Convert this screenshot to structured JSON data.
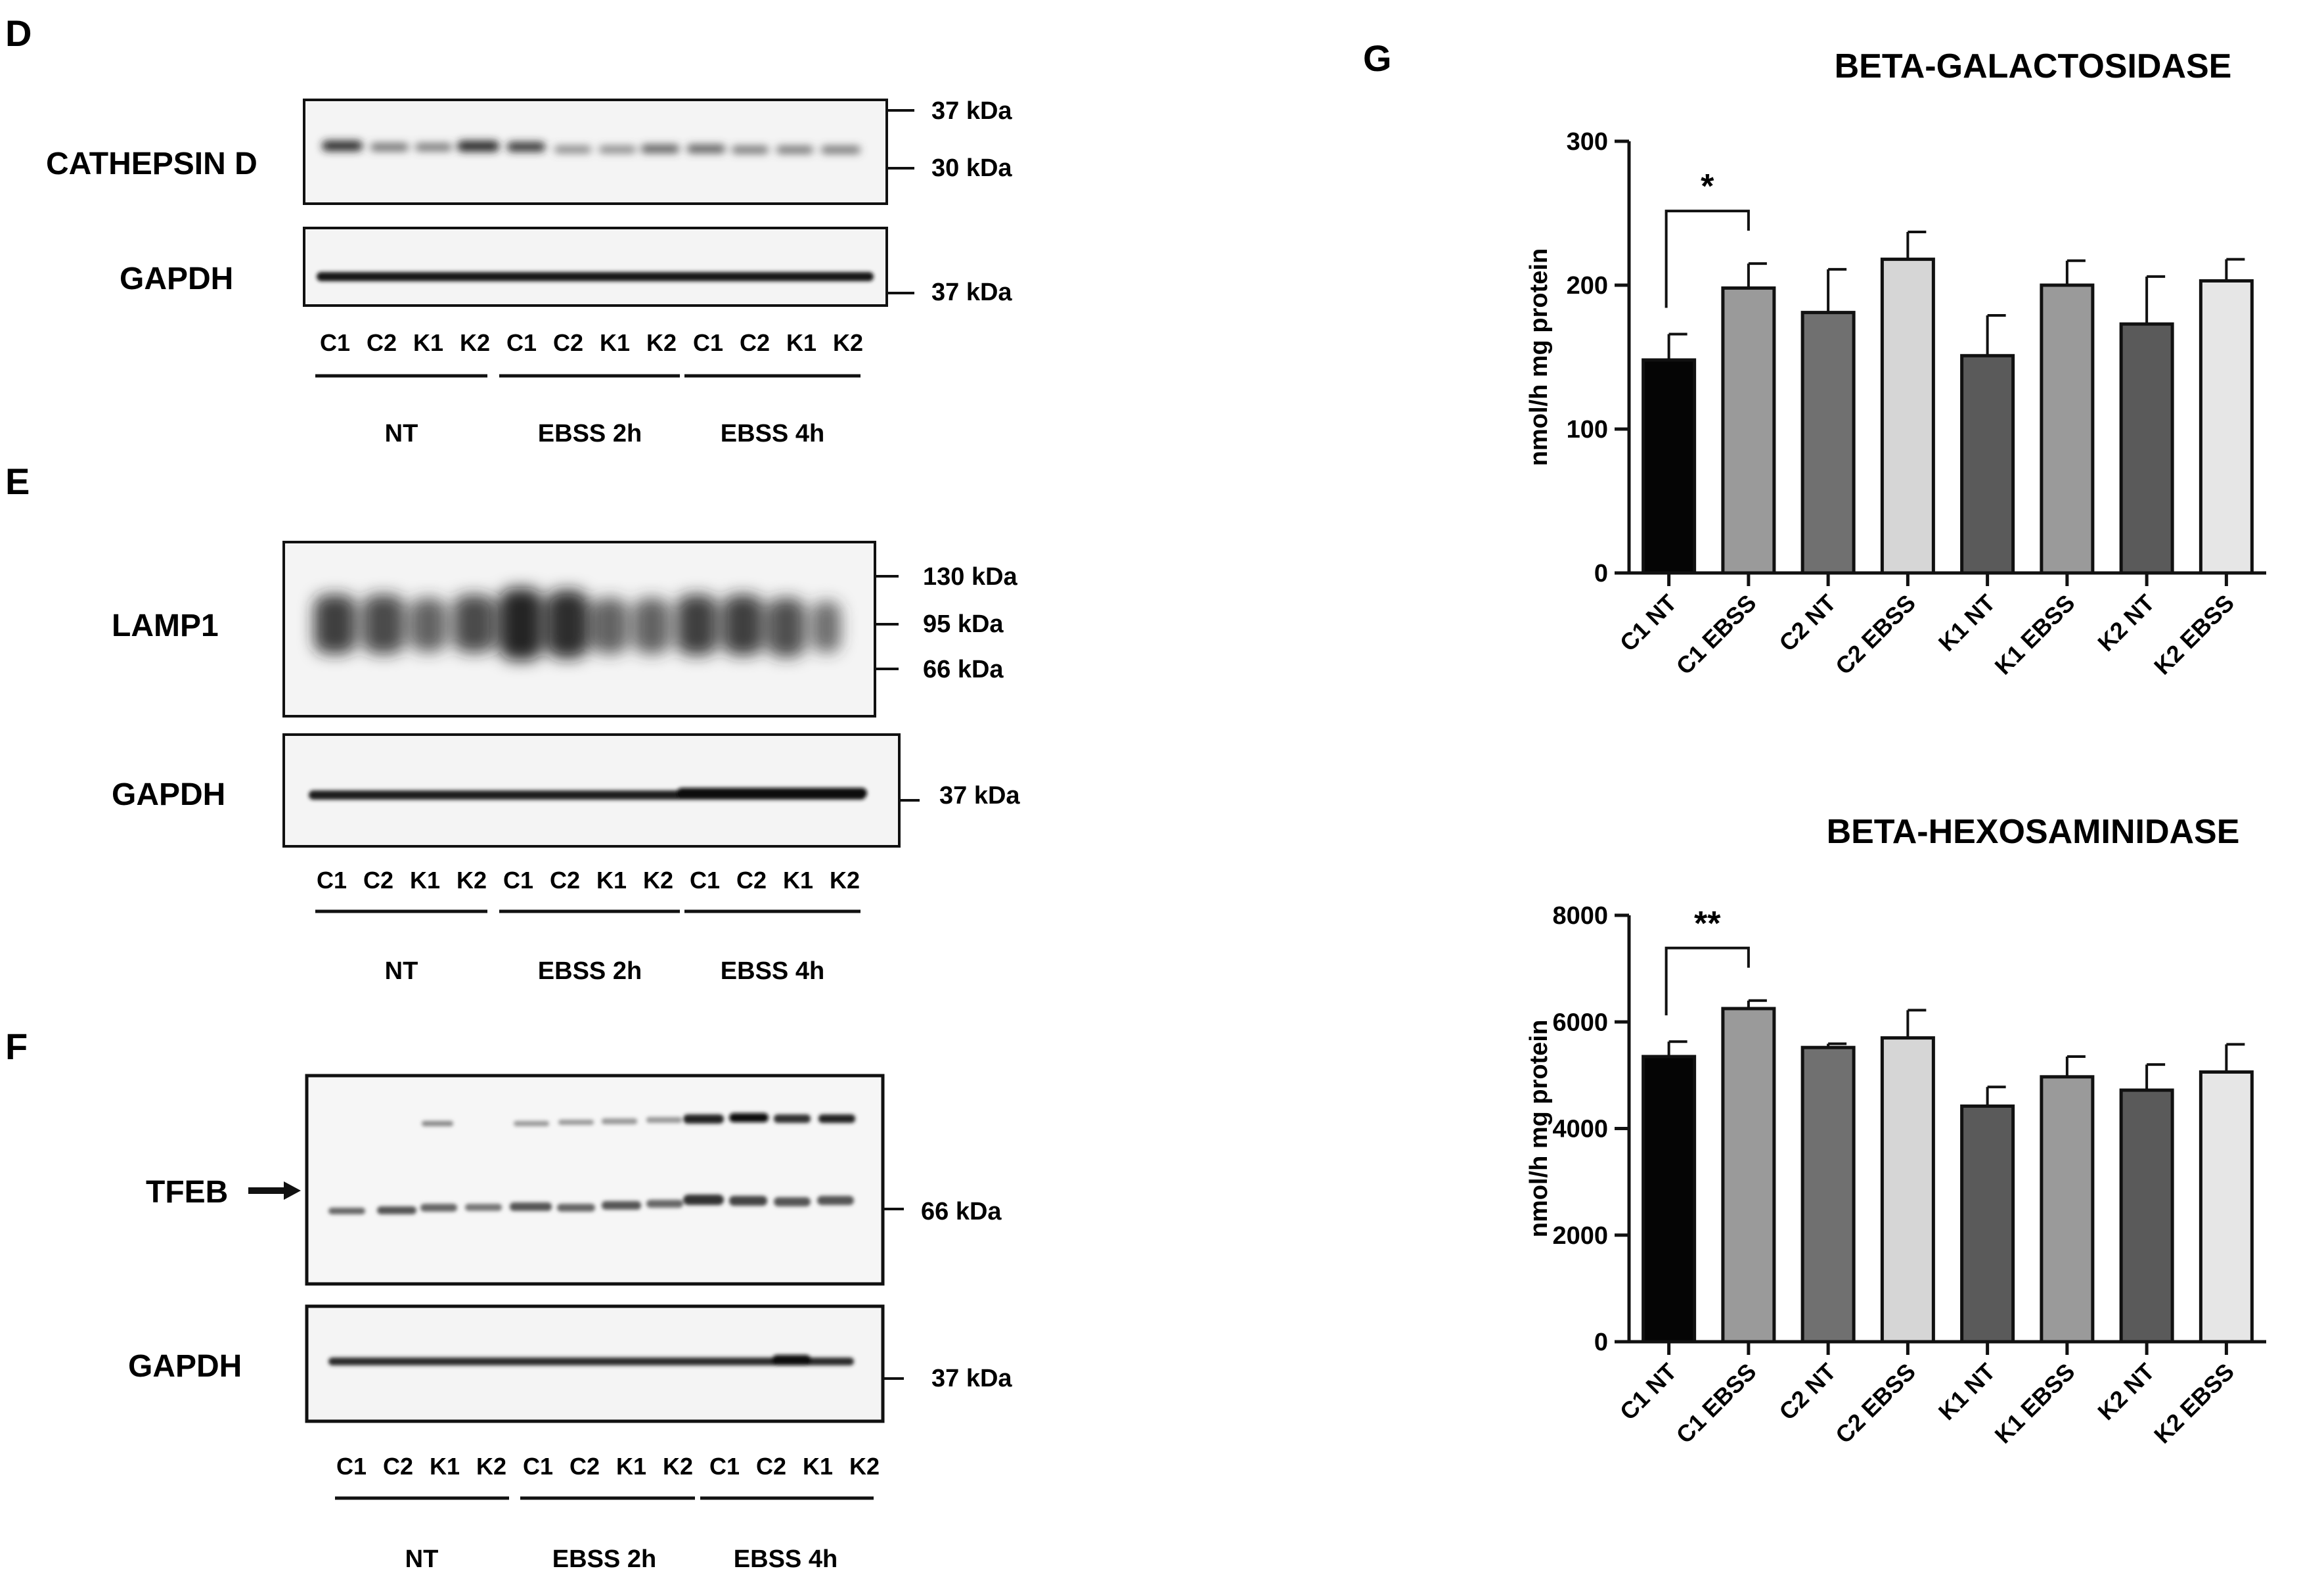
{
  "panels": {
    "D": {
      "letter": "D",
      "blots": [
        {
          "label": "CATHEPSIN D",
          "markers": [
            "37 kDa",
            "30 kDa"
          ]
        },
        {
          "label": "GAPDH",
          "markers": [
            "37 kDa"
          ]
        }
      ],
      "lanes": [
        "C1",
        "C2",
        "K1",
        "K2",
        "C1",
        "C2",
        "K1",
        "K2",
        "C1",
        "C2",
        "K1",
        "K2"
      ],
      "conditions": [
        "NT",
        "EBSS 2h",
        "EBSS 4h"
      ]
    },
    "E": {
      "letter": "E",
      "blots": [
        {
          "label": "LAMP1",
          "markers": [
            "130 kDa",
            "95 kDa",
            "66 kDa"
          ]
        },
        {
          "label": "GAPDH",
          "markers": [
            "37 kDa"
          ]
        }
      ],
      "lanes": [
        "C1",
        "C2",
        "K1",
        "K2",
        "C1",
        "C2",
        "K1",
        "K2",
        "C1",
        "C2",
        "K1",
        "K2"
      ],
      "conditions": [
        "NT",
        "EBSS 2h",
        "EBSS 4h"
      ]
    },
    "F": {
      "letter": "F",
      "blots": [
        {
          "label": "TFEB",
          "markers": [
            "66 kDa"
          ]
        },
        {
          "label": "GAPDH",
          "markers": [
            "37 kDa"
          ]
        }
      ],
      "lanes": [
        "C1",
        "C2",
        "K1",
        "K2",
        "C1",
        "C2",
        "K1",
        "K2",
        "C1",
        "C2",
        "K1",
        "K2"
      ],
      "conditions": [
        "NT",
        "EBSS 2h",
        "EBSS 4h"
      ]
    },
    "G": {
      "letter": "G"
    }
  },
  "chart_data": [
    {
      "type": "bar",
      "title": "BETA-GALACTOSIDASE",
      "ylabel": "nmol/h mg protein",
      "xlabel": "",
      "ylim": [
        0,
        300
      ],
      "yticks": [
        0,
        100,
        200,
        300
      ],
      "categories": [
        "C1 NT",
        "C1 EBSS",
        "C2 NT",
        "C2 EBSS",
        "K1 NT",
        "K1 EBSS",
        "K2 NT",
        "K2 EBSS"
      ],
      "values": [
        148,
        198,
        181,
        218,
        151,
        200,
        173,
        203
      ],
      "errors": [
        18,
        17,
        30,
        19,
        28,
        17,
        33,
        15
      ],
      "colors": [
        "#050505",
        "#9a9a9a",
        "#707070",
        "#d6d6d6",
        "#5a5a5a",
        "#9a9a9a",
        "#5a5a5a",
        "#e6e6e6"
      ],
      "significance": [
        {
          "from": 0,
          "to": 1,
          "label": "*"
        }
      ]
    },
    {
      "type": "bar",
      "title": "BETA-HEXOSAMINIDASE",
      "ylabel": "nmol/h mg protein",
      "xlabel": "",
      "ylim": [
        0,
        8000
      ],
      "yticks": [
        0,
        2000,
        4000,
        6000,
        8000
      ],
      "categories": [
        "C1 NT",
        "C1 EBSS",
        "C2 NT",
        "C2 EBSS",
        "K1 NT",
        "K1 EBSS",
        "K2 NT",
        "K2 EBSS"
      ],
      "values": [
        5350,
        6250,
        5520,
        5700,
        4420,
        4970,
        4720,
        5060
      ],
      "errors": [
        280,
        150,
        70,
        520,
        360,
        380,
        480,
        520
      ],
      "colors": [
        "#050505",
        "#9a9a9a",
        "#707070",
        "#d6d6d6",
        "#5a5a5a",
        "#9a9a9a",
        "#5a5a5a",
        "#e6e6e6"
      ],
      "significance": [
        {
          "from": 0,
          "to": 1,
          "label": "**"
        }
      ]
    }
  ]
}
